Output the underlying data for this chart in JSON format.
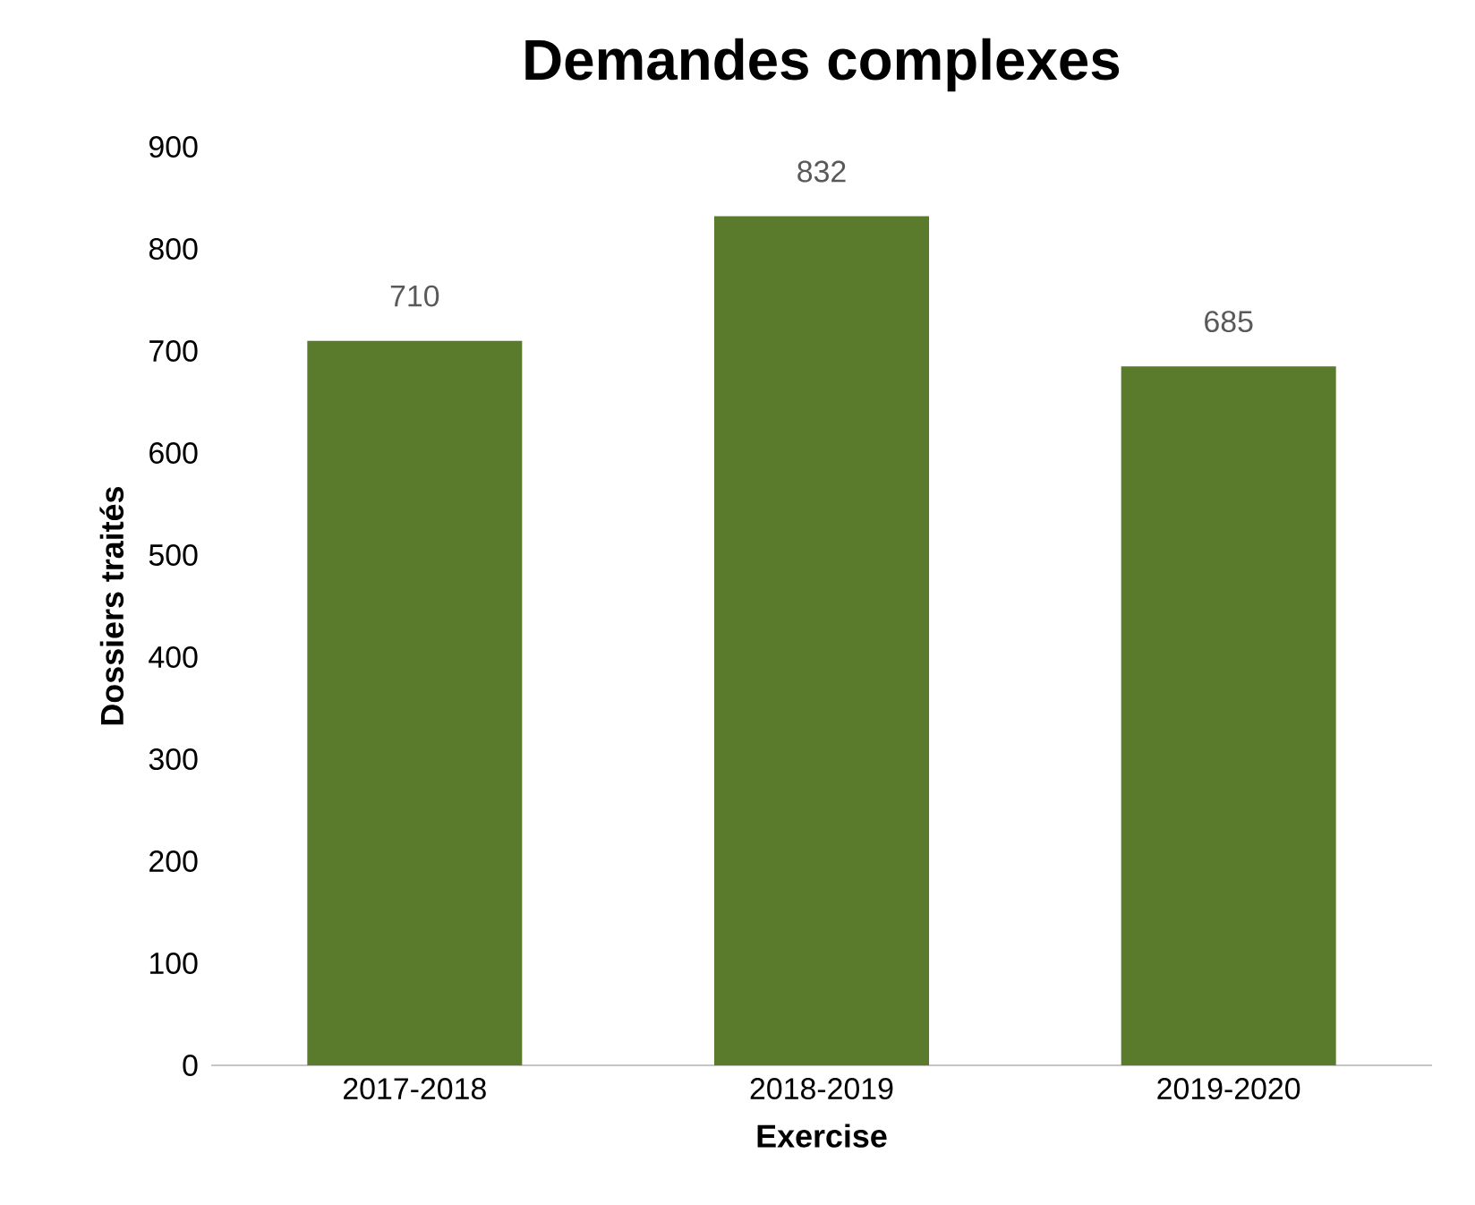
{
  "chart_data": {
    "type": "bar",
    "title": "Demandes complexes",
    "xlabel": "Exercise",
    "ylabel": "Dossiers traités",
    "categories": [
      "2017-2018",
      "2018-2019",
      "2019-2020"
    ],
    "values": [
      710,
      832,
      685
    ],
    "color": "#5a7a2c",
    "ylim": [
      0,
      900
    ],
    "yticks": [
      0,
      100,
      200,
      300,
      400,
      500,
      600,
      700,
      800,
      900
    ],
    "data_labels": true
  }
}
